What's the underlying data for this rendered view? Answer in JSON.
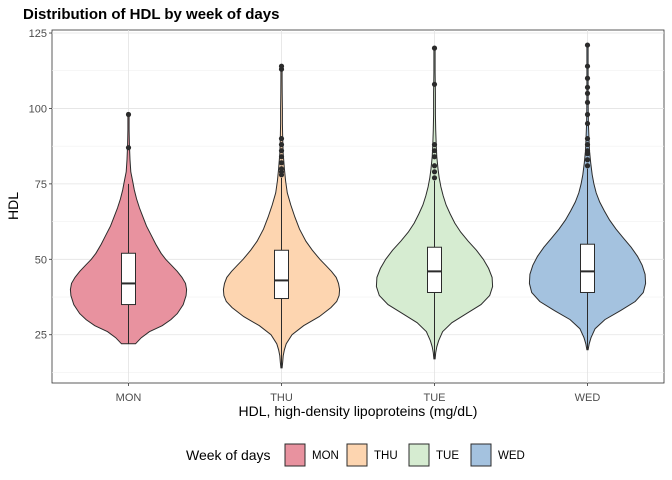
{
  "chart_data": {
    "type": "violin",
    "title": "Distribution of HDL by week of days",
    "xlabel": "HDL, high-density lipoproteins (mg/dL)",
    "ylabel": "HDL",
    "ylim": [
      9,
      126
    ],
    "yticks": [
      25,
      50,
      75,
      100,
      125
    ],
    "grid": true,
    "legend": {
      "title": "Week of days",
      "position": "bottom"
    },
    "categories": [
      "MON",
      "THU",
      "TUE",
      "WED"
    ],
    "colors": {
      "MON": "#e8929f",
      "THU": "#fdd5b0",
      "TUE": "#d6ecd1",
      "WED": "#a4c2df"
    },
    "series": [
      {
        "name": "MON",
        "box": {
          "q1": 35,
          "median": 42,
          "q3": 52,
          "whisker_low": 22,
          "whisker_high": 75
        },
        "outliers": [
          87,
          98
        ],
        "density": [
          [
            22,
            0.12
          ],
          [
            24,
            0.22
          ],
          [
            26,
            0.36
          ],
          [
            28,
            0.58
          ],
          [
            30,
            0.73
          ],
          [
            32,
            0.84
          ],
          [
            35,
            0.94
          ],
          [
            38,
            0.99
          ],
          [
            40,
            1.0
          ],
          [
            42,
            0.98
          ],
          [
            44,
            0.92
          ],
          [
            46,
            0.84
          ],
          [
            48,
            0.74
          ],
          [
            50,
            0.64
          ],
          [
            52,
            0.56
          ],
          [
            55,
            0.47
          ],
          [
            58,
            0.39
          ],
          [
            61,
            0.31
          ],
          [
            64,
            0.25
          ],
          [
            67,
            0.19
          ],
          [
            70,
            0.14
          ],
          [
            73,
            0.1
          ],
          [
            76,
            0.07
          ],
          [
            79,
            0.04
          ],
          [
            83,
            0.025
          ],
          [
            88,
            0.015
          ],
          [
            93,
            0.01
          ],
          [
            98,
            0.01
          ]
        ]
      },
      {
        "name": "THU",
        "box": {
          "q1": 37,
          "median": 43,
          "q3": 53,
          "whisker_low": 14,
          "whisker_high": 77
        },
        "outliers": [
          78,
          79,
          80,
          82,
          84,
          86,
          88,
          90,
          113,
          114
        ],
        "density": [
          [
            14,
            0.01
          ],
          [
            16,
            0.02
          ],
          [
            18,
            0.03
          ],
          [
            20,
            0.05
          ],
          [
            22,
            0.08
          ],
          [
            25,
            0.18
          ],
          [
            28,
            0.38
          ],
          [
            31,
            0.65
          ],
          [
            34,
            0.85
          ],
          [
            36,
            0.95
          ],
          [
            38,
            0.99
          ],
          [
            40,
            1.0
          ],
          [
            42,
            0.98
          ],
          [
            44,
            0.94
          ],
          [
            46,
            0.86
          ],
          [
            48,
            0.76
          ],
          [
            50,
            0.66
          ],
          [
            53,
            0.53
          ],
          [
            56,
            0.42
          ],
          [
            60,
            0.31
          ],
          [
            64,
            0.23
          ],
          [
            68,
            0.16
          ],
          [
            72,
            0.1
          ],
          [
            76,
            0.07
          ],
          [
            80,
            0.05
          ],
          [
            85,
            0.03
          ],
          [
            90,
            0.02
          ],
          [
            95,
            0.015
          ],
          [
            100,
            0.015
          ],
          [
            105,
            0.012
          ],
          [
            110,
            0.01
          ],
          [
            114,
            0.01
          ]
        ]
      },
      {
        "name": "TUE",
        "box": {
          "q1": 39,
          "median": 46,
          "q3": 54,
          "whisker_low": 17,
          "whisker_high": 76
        },
        "outliers": [
          77,
          79,
          81,
          84,
          86,
          88,
          108,
          120
        ],
        "density": [
          [
            17,
            0.01
          ],
          [
            19,
            0.02
          ],
          [
            21,
            0.04
          ],
          [
            23,
            0.07
          ],
          [
            26,
            0.14
          ],
          [
            29,
            0.3
          ],
          [
            32,
            0.55
          ],
          [
            35,
            0.8
          ],
          [
            38,
            0.95
          ],
          [
            41,
            1.0
          ],
          [
            44,
            0.99
          ],
          [
            47,
            0.93
          ],
          [
            50,
            0.84
          ],
          [
            53,
            0.72
          ],
          [
            56,
            0.58
          ],
          [
            59,
            0.45
          ],
          [
            62,
            0.35
          ],
          [
            65,
            0.27
          ],
          [
            68,
            0.2
          ],
          [
            71,
            0.15
          ],
          [
            74,
            0.11
          ],
          [
            77,
            0.08
          ],
          [
            80,
            0.06
          ],
          [
            84,
            0.04
          ],
          [
            88,
            0.03
          ],
          [
            93,
            0.02
          ],
          [
            98,
            0.015
          ],
          [
            105,
            0.015
          ],
          [
            112,
            0.01
          ],
          [
            120,
            0.01
          ]
        ]
      },
      {
        "name": "WED",
        "box": {
          "q1": 39,
          "median": 46,
          "q3": 55,
          "whisker_low": 20,
          "whisker_high": 80
        },
        "outliers": [
          81,
          83,
          85,
          86,
          88,
          90,
          95,
          98,
          102,
          105,
          107,
          110,
          114,
          121
        ],
        "density": [
          [
            20,
            0.01
          ],
          [
            22,
            0.03
          ],
          [
            24,
            0.06
          ],
          [
            27,
            0.13
          ],
          [
            30,
            0.3
          ],
          [
            33,
            0.57
          ],
          [
            36,
            0.82
          ],
          [
            39,
            0.96
          ],
          [
            42,
            1.0
          ],
          [
            45,
            0.99
          ],
          [
            48,
            0.94
          ],
          [
            51,
            0.86
          ],
          [
            54,
            0.75
          ],
          [
            57,
            0.62
          ],
          [
            60,
            0.49
          ],
          [
            63,
            0.38
          ],
          [
            66,
            0.29
          ],
          [
            69,
            0.21
          ],
          [
            72,
            0.15
          ],
          [
            75,
            0.11
          ],
          [
            78,
            0.08
          ],
          [
            82,
            0.055
          ],
          [
            86,
            0.035
          ],
          [
            90,
            0.025
          ],
          [
            95,
            0.015
          ],
          [
            100,
            0.012
          ],
          [
            106,
            0.01
          ],
          [
            112,
            0.01
          ],
          [
            117,
            0.01
          ],
          [
            121,
            0.01
          ]
        ]
      }
    ]
  }
}
